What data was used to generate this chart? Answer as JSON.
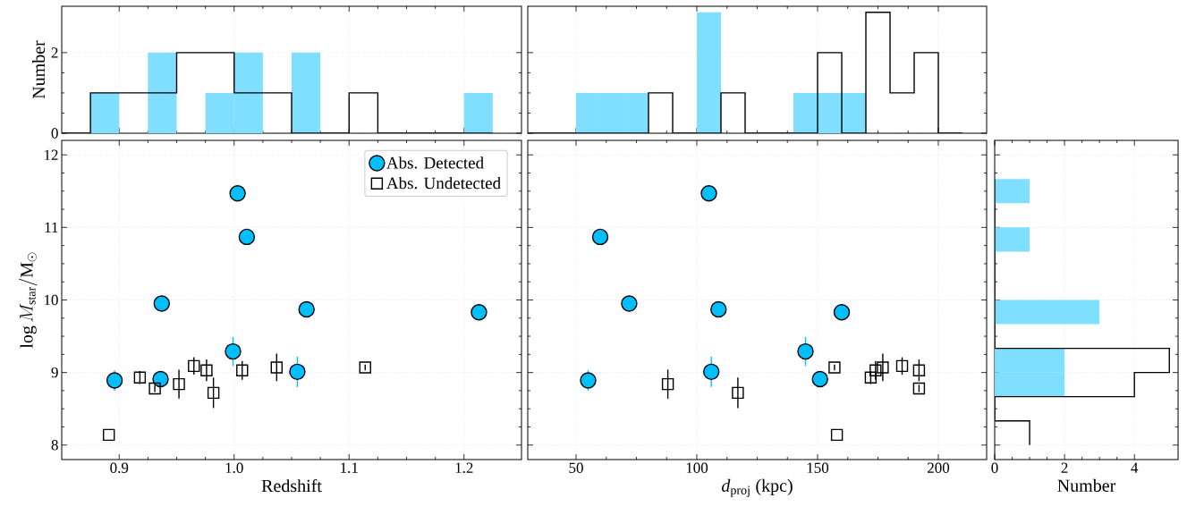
{
  "chart_data": [
    {
      "type": "histogram",
      "ylabel": "Number",
      "bins": [
        0.85,
        0.875,
        0.9,
        0.925,
        0.95,
        0.975,
        1.0,
        1.025,
        1.05,
        1.075,
        1.1,
        1.125,
        1.15,
        1.175,
        1.2,
        1.225,
        1.25
      ],
      "series": [
        {
          "color": "#80dfff",
          "values": [
            0,
            1,
            0,
            2,
            0,
            1,
            2,
            0,
            2,
            0,
            0,
            0,
            0,
            0,
            1,
            0
          ]
        },
        {
          "type": "step",
          "color": "#000000",
          "x": [
            0.85,
            0.875,
            0.9,
            0.925,
            0.95,
            0.975,
            1.0,
            1.025,
            1.05,
            1.075,
            1.1,
            1.125,
            1.15,
            1.175,
            1.2,
            1.225
          ],
          "values": [
            0,
            1,
            1,
            1,
            2,
            2,
            1,
            1,
            0,
            0,
            1,
            0,
            0,
            0,
            0,
            0
          ]
        }
      ],
      "xlim": [
        0.85,
        1.25
      ],
      "xticks": [
        0.9,
        1.0,
        1.1,
        1.2
      ],
      "ylim": [
        0,
        3.15
      ],
      "yticks": [
        0,
        2
      ],
      "grid": true,
      "tick_labels": "y"
    },
    {
      "type": "histogram",
      "bins": [
        30,
        40,
        50,
        60,
        70,
        80,
        90,
        100,
        110,
        120,
        130,
        140,
        150,
        160,
        170,
        180,
        190,
        200,
        210,
        220
      ],
      "series": [
        {
          "color": "#80dfff",
          "values": [
            0,
            0,
            1,
            1,
            1,
            0,
            0,
            3,
            0,
            0,
            0,
            1,
            1,
            1,
            0,
            0,
            0,
            0,
            0
          ]
        },
        {
          "type": "step",
          "color": "#000000",
          "x": [
            30,
            40,
            50,
            60,
            70,
            80,
            90,
            100,
            110,
            120,
            130,
            140,
            150,
            160,
            170,
            180,
            190,
            200,
            210
          ],
          "values": [
            0,
            0,
            0,
            0,
            0,
            1,
            0,
            0,
            1,
            0,
            0,
            0,
            2,
            0,
            3,
            1,
            2,
            0,
            0
          ]
        }
      ],
      "xlim": [
        30,
        220
      ],
      "xticks": [
        50,
        100,
        150,
        200
      ],
      "ylim": [
        0,
        3.15
      ],
      "yticks": [
        0,
        2
      ],
      "grid": true,
      "tick_labels": false
    },
    {
      "type": "scatter",
      "xlabel": "Redshift",
      "ylabel": "\\log M_{\\rm star}/{\\rm M}_\\odot",
      "series": [
        {
          "name": "Abs. Detected",
          "color": "#00bfff",
          "marker": "circle",
          "x": [
            0.896,
            0.936,
            0.937,
            0.999,
            1.003,
            1.011,
            1.055,
            1.063,
            1.213
          ],
          "values": [
            8.89,
            8.91,
            9.95,
            9.29,
            11.47,
            10.87,
            9.01,
            9.87,
            9.83
          ],
          "errors": [
            0.14,
            0.08,
            0.08,
            0.2,
            null,
            null,
            0.21,
            null,
            0.11
          ]
        },
        {
          "name": "Abs. Undetected",
          "color": "#000000",
          "marker": "square",
          "x": [
            0.891,
            0.918,
            0.931,
            0.952,
            0.965,
            0.976,
            0.982,
            1.007,
            1.037,
            1.114
          ],
          "values": [
            8.14,
            8.93,
            8.78,
            8.84,
            9.09,
            9.03,
            8.72,
            9.03,
            9.07,
            9.07
          ],
          "errors": [
            null,
            0.09,
            0.05,
            0.2,
            0.12,
            0.15,
            0.21,
            0.13,
            0.19,
            0.04
          ]
        }
      ],
      "xlim": [
        0.85,
        1.25
      ],
      "xticks": [
        0.9,
        {
          "value": 1.0,
          "label": "1.0"
        },
        1.1,
        1.2
      ],
      "ylim": [
        7.8,
        12.2
      ],
      "yticks": [
        8,
        9,
        10,
        11,
        12
      ],
      "grid": true,
      "legend": "top right"
    },
    {
      "type": "scatter",
      "xlabel": "*d*$_{proj}$ (kpc)",
      "series": [
        {
          "color": "#00bfff",
          "marker": "circle",
          "x": [
            55,
            151,
            72,
            145,
            105,
            60,
            106,
            109,
            160
          ],
          "values": [
            8.89,
            8.91,
            9.95,
            9.29,
            11.47,
            10.87,
            9.01,
            9.87,
            9.83
          ],
          "errors": [
            0.14,
            0.08,
            0.08,
            0.2,
            null,
            null,
            0.21,
            null,
            0.11
          ]
        },
        {
          "color": "#000000",
          "marker": "square",
          "x": [
            158,
            172,
            192,
            88,
            185,
            192,
            117,
            174,
            177,
            157
          ],
          "values": [
            8.14,
            8.93,
            8.78,
            8.84,
            9.09,
            9.03,
            8.72,
            9.03,
            9.07,
            9.07
          ],
          "errors": [
            null,
            0.09,
            0.05,
            0.2,
            0.12,
            0.15,
            0.21,
            0.13,
            0.19,
            0.04
          ]
        }
      ],
      "xlim": [
        30,
        220
      ],
      "xticks": [
        50,
        100,
        150,
        200
      ],
      "ylim": [
        7.8,
        12.2
      ],
      "yticks": [
        8,
        9,
        10,
        11,
        12
      ],
      "grid": true,
      "tick_labels": "x"
    },
    {
      "type": "histogram",
      "orientation": "horizontal",
      "xlabel": "Number",
      "bins": [
        8,
        8.333,
        8.667,
        9,
        9.333,
        9.667,
        10,
        10.333,
        10.667,
        11,
        11.333,
        11.667,
        12
      ],
      "series": [
        {
          "color": "#80dfff",
          "values": [
            0,
            0,
            2,
            2,
            0,
            3,
            0,
            0,
            1,
            0,
            1,
            0
          ]
        },
        {
          "type": "step",
          "color": "#000000",
          "x": [
            8,
            8.333,
            8.667,
            9,
            9.333,
            9.667,
            10,
            10.333,
            10.667,
            11,
            11.333,
            11.667
          ],
          "values": [
            1,
            0,
            4,
            5,
            0,
            0,
            0,
            0,
            0,
            0,
            0,
            0
          ]
        }
      ],
      "xlim": [
        0,
        5.25
      ],
      "xticks": [
        0,
        2,
        4
      ],
      "ylim": [
        7.8,
        12.2
      ],
      "yticks": [
        8,
        9,
        10,
        11,
        12
      ],
      "grid": true,
      "tick_labels": "x"
    }
  ]
}
